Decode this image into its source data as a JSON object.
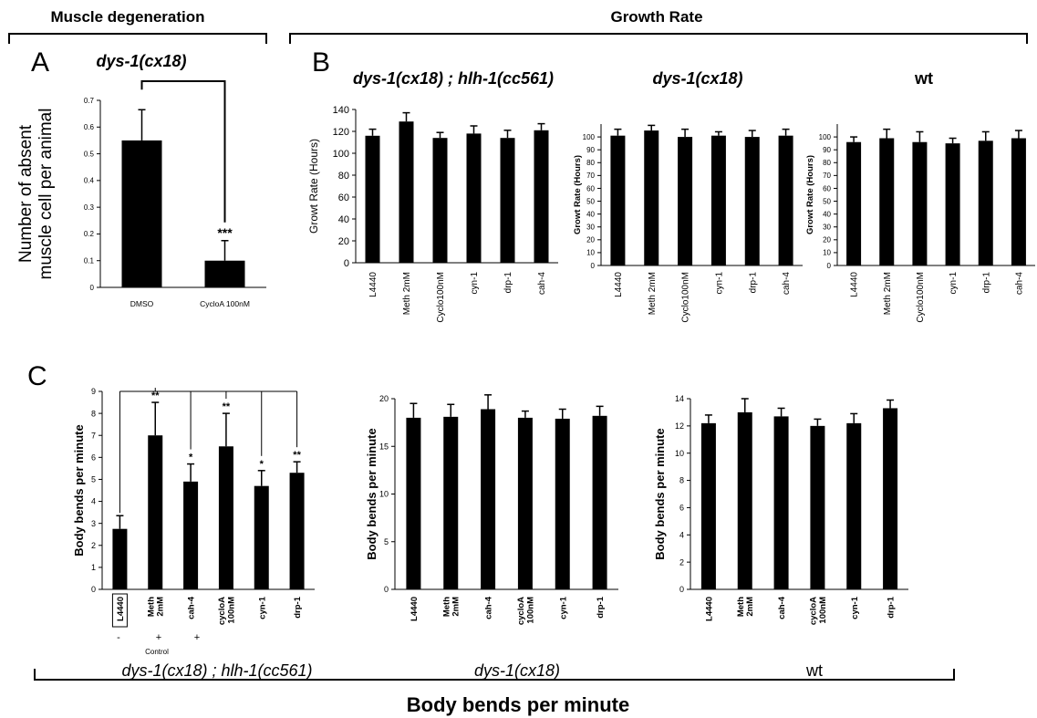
{
  "headers": {
    "left": "Muscle degeneration",
    "right": "Growth Rate",
    "bottom": "Body bends per minute"
  },
  "panels": {
    "A": "A",
    "B": "B",
    "C": "C"
  },
  "genotype_labels": {
    "dys_hlh": "dys-1(cx18) ; hlh-1(cc561)",
    "dys": "dys-1(cx18)",
    "wt": "wt"
  },
  "control_note": {
    "signs": [
      "-",
      "+",
      "+"
    ],
    "label": "Control"
  },
  "colors": {
    "bar": "#000000",
    "axis": "#000000",
    "background": "#ffffff"
  },
  "chart_data": [
    {
      "id": "A",
      "type": "bar",
      "title": "dys-1(cx18)",
      "ylabel": "Number of absent muscle cell per animal",
      "xlabel": "",
      "categories": [
        "DMSO",
        "CycloA 100nM"
      ],
      "values": [
        0.55,
        0.1
      ],
      "errors": [
        0.115,
        0.075
      ],
      "ylim": [
        0,
        0.7
      ],
      "yticks": [
        0,
        0.1,
        0.2,
        0.3,
        0.4,
        0.5,
        0.6,
        0.7
      ],
      "ytick_labels": [
        "0",
        "0.1",
        "0.2",
        "0.3",
        "0.4",
        "0.5",
        "0.6",
        "0.7"
      ],
      "significance": [
        "",
        "***"
      ],
      "comparison_bracket": [
        0,
        1
      ]
    },
    {
      "id": "B1",
      "type": "bar",
      "title": "",
      "ylabel": "Growt Rate (Hours)",
      "xlabel": "",
      "categories": [
        "L4440",
        "Meth 2mM",
        "Cyclo100nM",
        "cyn-1",
        "drp-1",
        "cah-4"
      ],
      "values": [
        116,
        129,
        114,
        118,
        114,
        121
      ],
      "errors": [
        6,
        8,
        5,
        7,
        7,
        6
      ],
      "ylim": [
        0,
        140
      ],
      "yticks": [
        0,
        20,
        40,
        60,
        80,
        100,
        120,
        140
      ],
      "ytick_labels": [
        "0",
        "20",
        "40",
        "60",
        "80",
        "100",
        "120",
        "140"
      ]
    },
    {
      "id": "B2",
      "type": "bar",
      "title": "",
      "ylabel": "Growt Rate (Hours)",
      "xlabel": "",
      "categories": [
        "L4440",
        "Meth 2mM",
        "Cyclo100nM",
        "cyn-1",
        "drp-1",
        "cah-4"
      ],
      "values": [
        101,
        105,
        100,
        101,
        100,
        101
      ],
      "errors": [
        5,
        4,
        6,
        3,
        5,
        5
      ],
      "ylim": [
        0,
        110
      ],
      "yticks": [
        0,
        10,
        20,
        30,
        40,
        50,
        60,
        70,
        80,
        90,
        100
      ],
      "ytick_labels": [
        "0",
        "10",
        "20",
        "30",
        "40",
        "50",
        "60",
        "70",
        "80",
        "90",
        "100"
      ]
    },
    {
      "id": "B3",
      "type": "bar",
      "title": "",
      "ylabel": "Growt Rate (Hours)",
      "xlabel": "",
      "categories": [
        "L4440",
        "Meth 2mM",
        "Cyclo100nM",
        "cyn-1",
        "drp-1",
        "cah-4"
      ],
      "values": [
        96,
        99,
        96,
        95,
        97,
        99
      ],
      "errors": [
        4,
        7,
        8,
        4,
        7,
        6
      ],
      "ylim": [
        0,
        110
      ],
      "yticks": [
        0,
        10,
        20,
        30,
        40,
        50,
        60,
        70,
        80,
        90,
        100
      ],
      "ytick_labels": [
        "0",
        "10",
        "20",
        "30",
        "40",
        "50",
        "60",
        "70",
        "80",
        "90",
        "100"
      ]
    },
    {
      "id": "C1",
      "type": "bar",
      "title": "",
      "ylabel": "Body bends per minute",
      "xlabel": "",
      "categories": [
        "L4440",
        "Meth 2mM",
        "cah-4",
        "cycloA 100nM",
        "cyn-1",
        "drp-1"
      ],
      "values": [
        2.75,
        7.0,
        4.9,
        6.5,
        4.7,
        5.3
      ],
      "errors": [
        0.6,
        1.5,
        0.8,
        1.5,
        0.7,
        0.5
      ],
      "ylim": [
        0,
        9
      ],
      "yticks": [
        0,
        1,
        2,
        3,
        4,
        5,
        6,
        7,
        8,
        9
      ],
      "ytick_labels": [
        "0",
        "1",
        "2",
        "3",
        "4",
        "5",
        "6",
        "7",
        "8",
        "9"
      ],
      "significance": [
        "",
        "**",
        "*",
        "**",
        "*",
        "**"
      ]
    },
    {
      "id": "C2",
      "type": "bar",
      "title": "",
      "ylabel": "Body bends per minute",
      "xlabel": "",
      "categories": [
        "L4440",
        "Meth 2mM",
        "cah-4",
        "cycloA 100nM",
        "cyn-1",
        "drp-1"
      ],
      "values": [
        18.0,
        18.1,
        18.9,
        18.0,
        17.9,
        18.2
      ],
      "errors": [
        1.5,
        1.3,
        1.5,
        0.7,
        1.0,
        1.0
      ],
      "ylim": [
        0,
        20
      ],
      "yticks": [
        0,
        5,
        10,
        15,
        20
      ],
      "ytick_labels": [
        "0",
        "5",
        "10",
        "15",
        "20"
      ]
    },
    {
      "id": "C3",
      "type": "bar",
      "title": "",
      "ylabel": "Body bends per minute",
      "xlabel": "",
      "categories": [
        "L4440",
        "Meth 2mM",
        "cah-4",
        "cycloA 100nM",
        "cyn-1",
        "drp-1"
      ],
      "values": [
        12.2,
        13.0,
        12.7,
        12.0,
        12.2,
        13.3
      ],
      "errors": [
        0.6,
        1.0,
        0.6,
        0.5,
        0.7,
        0.6
      ],
      "ylim": [
        0,
        14
      ],
      "yticks": [
        0,
        2,
        4,
        6,
        8,
        10,
        12,
        14
      ],
      "ytick_labels": [
        "0",
        "2",
        "4",
        "6",
        "8",
        "10",
        "12",
        "14"
      ]
    }
  ]
}
